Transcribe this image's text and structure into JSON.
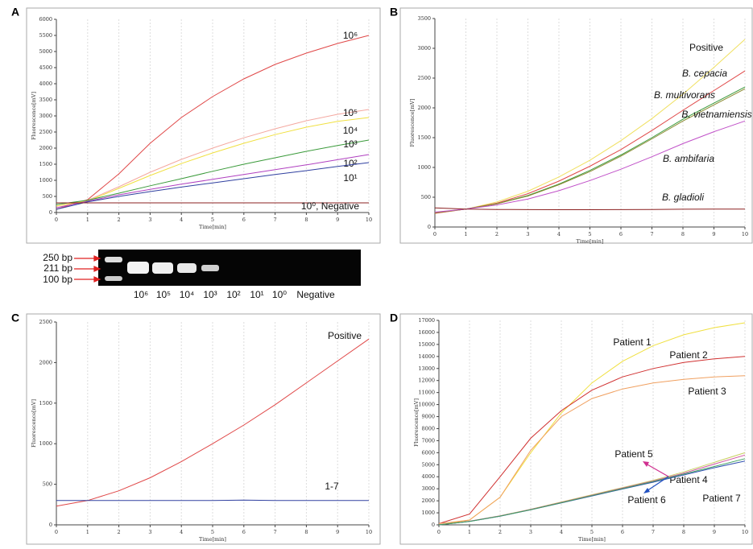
{
  "chart_data": [
    {
      "type": "line",
      "label": "A",
      "xlabel": "Time[min]",
      "ylabel": "Fluorescence[mV]",
      "x": [
        0,
        1,
        2,
        3,
        4,
        5,
        6,
        7,
        8,
        9,
        10
      ],
      "xlim": [
        0,
        10
      ],
      "xticks": [
        0,
        1,
        2,
        3,
        4,
        5,
        6,
        7,
        8,
        9,
        10
      ],
      "ylim": [
        0,
        6000
      ],
      "yticks": [
        0,
        500,
        1000,
        1500,
        2000,
        2500,
        3000,
        3500,
        4000,
        4500,
        5000,
        5500,
        6000
      ],
      "grid": true,
      "series": [
        {
          "name": "10⁶",
          "color": "#e04848",
          "values": [
            100,
            400,
            1200,
            2150,
            2950,
            3600,
            4150,
            4600,
            4950,
            5250,
            5500
          ]
        },
        {
          "name": "10⁵",
          "color": "#f4a8a0",
          "values": [
            200,
            380,
            800,
            1250,
            1650,
            2000,
            2320,
            2600,
            2850,
            3050,
            3200
          ]
        },
        {
          "name": "10⁴",
          "color": "#f0e040",
          "values": [
            200,
            360,
            750,
            1150,
            1520,
            1850,
            2150,
            2420,
            2650,
            2830,
            2950
          ]
        },
        {
          "name": "10³",
          "color": "#3a9a3a",
          "values": [
            250,
            380,
            600,
            830,
            1050,
            1280,
            1500,
            1700,
            1900,
            2080,
            2250
          ]
        },
        {
          "name": "10²",
          "color": "#b040c0",
          "values": [
            150,
            350,
            550,
            720,
            880,
            1030,
            1180,
            1330,
            1480,
            1640,
            1800
          ]
        },
        {
          "name": "10¹",
          "color": "#3040a0",
          "values": [
            100,
            330,
            500,
            650,
            790,
            920,
            1050,
            1180,
            1300,
            1430,
            1550
          ]
        },
        {
          "name": "10⁰, Negative",
          "color": "#8b2020",
          "values": [
            300,
            300,
            300,
            300,
            300,
            300,
            300,
            300,
            300,
            300,
            300
          ]
        }
      ]
    },
    {
      "type": "line",
      "label": "B",
      "xlabel": "Time[min]",
      "ylabel": "Fluorescence[mV]",
      "x": [
        0,
        1,
        2,
        3,
        4,
        5,
        6,
        7,
        8,
        9,
        10
      ],
      "xlim": [
        0,
        10
      ],
      "xticks": [
        0,
        1,
        2,
        3,
        4,
        5,
        6,
        7,
        8,
        9,
        10
      ],
      "ylim": [
        0,
        3500
      ],
      "yticks": [
        0,
        500,
        1000,
        1500,
        2000,
        2500,
        3000,
        3500
      ],
      "grid": true,
      "series": [
        {
          "name": "Positive",
          "color": "#f0e060",
          "values": [
            230,
            300,
            420,
            600,
            840,
            1120,
            1450,
            1820,
            2230,
            2680,
            3150
          ]
        },
        {
          "name": "B. cepacia",
          "color": "#e04848",
          "values": [
            230,
            300,
            400,
            560,
            770,
            1020,
            1300,
            1620,
            1960,
            2290,
            2620
          ]
        },
        {
          "name": "B. multivorans",
          "color": "#3a9a3a",
          "values": [
            240,
            300,
            390,
            530,
            720,
            950,
            1210,
            1500,
            1810,
            2080,
            2350
          ]
        },
        {
          "name": "B. vietnamiensis",
          "color": "#8a8a30",
          "values": [
            240,
            300,
            390,
            520,
            710,
            930,
            1190,
            1480,
            1780,
            2050,
            2320
          ]
        },
        {
          "name": "B. ambifaria",
          "color": "#c050c8",
          "values": [
            250,
            300,
            370,
            470,
            610,
            780,
            970,
            1180,
            1400,
            1600,
            1780
          ]
        },
        {
          "name": "B. gladioli",
          "color": "#8b2020",
          "values": [
            320,
            300,
            295,
            292,
            290,
            290,
            292,
            295,
            298,
            300,
            302
          ]
        }
      ]
    },
    {
      "type": "line",
      "label": "C",
      "xlabel": "Time[min]",
      "ylabel": "Fluorescence[mV]",
      "x": [
        0,
        1,
        2,
        3,
        4,
        5,
        6,
        7,
        8,
        9,
        10
      ],
      "xlim": [
        0,
        10
      ],
      "xticks": [
        0,
        1,
        2,
        3,
        4,
        5,
        6,
        7,
        8,
        9,
        10
      ],
      "ylim": [
        0,
        2500
      ],
      "yticks": [
        0,
        500,
        1000,
        1500,
        2000,
        2500
      ],
      "grid": true,
      "series": [
        {
          "name": "Positive",
          "color": "#e04848",
          "values": [
            230,
            300,
            420,
            580,
            780,
            1000,
            1230,
            1480,
            1750,
            2020,
            2290
          ]
        },
        {
          "name": "1-7",
          "color": "#3040a0",
          "values": [
            300,
            300,
            300,
            300,
            300,
            300,
            305,
            300,
            300,
            300,
            300
          ]
        }
      ]
    },
    {
      "type": "line",
      "label": "D",
      "xlabel": "Time[min]",
      "ylabel": "Fluorescence[mV]",
      "x": [
        0,
        1,
        2,
        3,
        4,
        5,
        6,
        7,
        8,
        9,
        10
      ],
      "xlim": [
        0,
        10
      ],
      "xticks": [
        0,
        1,
        2,
        3,
        4,
        5,
        6,
        7,
        8,
        9,
        10
      ],
      "ylim": [
        0,
        17000
      ],
      "yticks": [
        0,
        1000,
        2000,
        3000,
        4000,
        5000,
        6000,
        7000,
        8000,
        9000,
        10000,
        11000,
        12000,
        13000,
        14000,
        15000,
        16000,
        17000
      ],
      "grid": true,
      "series": [
        {
          "name": "Patient 1",
          "color": "#f0e040",
          "values": [
            0,
            400,
            2300,
            6000,
            9300,
            11800,
            13600,
            14900,
            15800,
            16400,
            16800
          ]
        },
        {
          "name": "Patient 2",
          "color": "#d03030",
          "values": [
            100,
            900,
            4000,
            7200,
            9500,
            11200,
            12300,
            13000,
            13500,
            13800,
            14000
          ]
        },
        {
          "name": "Patient 3",
          "color": "#f0a060",
          "values": [
            100,
            400,
            2300,
            6200,
            9000,
            10500,
            11300,
            11800,
            12100,
            12300,
            12400
          ]
        },
        {
          "name": "Patient 4",
          "color": "#c8d060",
          "values": [
            0,
            300,
            750,
            1300,
            1900,
            2500,
            3100,
            3700,
            4400,
            5200,
            6000
          ]
        },
        {
          "name": "Patient 5",
          "color": "#d050a0",
          "values": [
            0,
            300,
            740,
            1280,
            1870,
            2460,
            3050,
            3640,
            4300,
            5050,
            5800
          ]
        },
        {
          "name": "Patient 6",
          "color": "#3050b0",
          "values": [
            0,
            280,
            720,
            1250,
            1820,
            2400,
            2980,
            3550,
            4150,
            4750,
            5300
          ]
        },
        {
          "name": "Patient 7",
          "color": "#40a060",
          "values": [
            0,
            290,
            730,
            1260,
            1840,
            2430,
            3010,
            3600,
            4220,
            4850,
            5500
          ]
        }
      ]
    }
  ],
  "gel": {
    "ladder": [
      "250 bp",
      "211 bp",
      "100 bp"
    ],
    "lanes": [
      "10⁶",
      "10⁵",
      "10⁴",
      "10³",
      "10²",
      "10¹",
      "10⁰",
      "Negative"
    ]
  }
}
